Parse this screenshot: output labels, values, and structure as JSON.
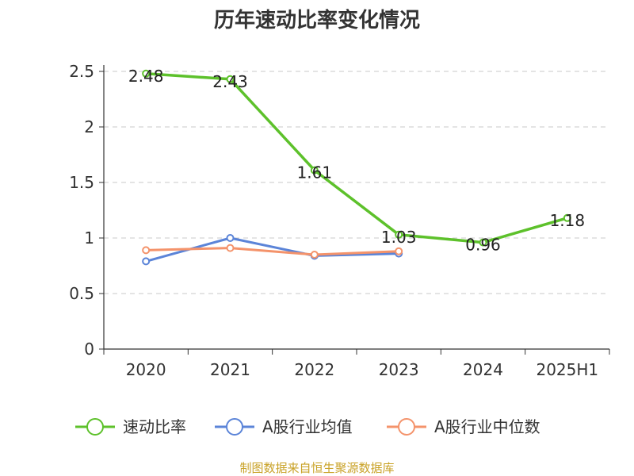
{
  "chart_data": {
    "type": "line",
    "title": "历年速动比率变化情况",
    "categories": [
      "2020",
      "2021",
      "2022",
      "2023",
      "2024",
      "2025H1"
    ],
    "y_ticks": [
      "0",
      "0.5",
      "1",
      "1.5",
      "2",
      "2.5"
    ],
    "ylim": [
      0,
      2.5
    ],
    "grid": true,
    "legend_position": "bottom",
    "series": [
      {
        "name": "速动比率",
        "color": "#5dc12b",
        "values": [
          2.48,
          2.43,
          1.61,
          1.03,
          0.96,
          1.18
        ],
        "labels": [
          "2.48",
          "2.43",
          "1.61",
          "1.03",
          "0.96",
          "1.18"
        ]
      },
      {
        "name": "A股行业均值",
        "color": "#5b84d8",
        "values": [
          0.79,
          1.0,
          0.84,
          0.86,
          null,
          null
        ]
      },
      {
        "name": "A股行业中位数",
        "color": "#f4936b",
        "values": [
          0.89,
          0.91,
          0.85,
          0.88,
          null,
          null
        ]
      }
    ]
  },
  "source_text": "制图数据来自恒生聚源数据库"
}
